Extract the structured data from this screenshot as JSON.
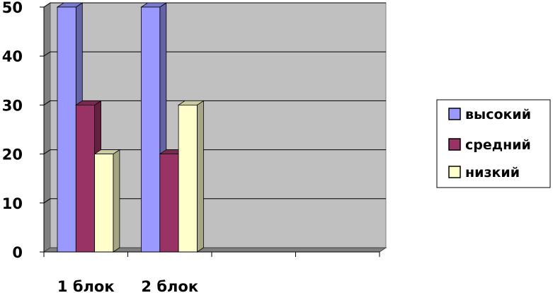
{
  "chart_data": {
    "type": "bar",
    "style": "3d-clustered-column",
    "categories": [
      "1 блок",
      "2 блок"
    ],
    "series": [
      {
        "name": "высокий",
        "values": [
          50,
          50
        ],
        "color": "#9999FF"
      },
      {
        "name": "средний",
        "values": [
          30,
          20
        ],
        "color": "#993366"
      },
      {
        "name": "низкий",
        "values": [
          20,
          30
        ],
        "color": "#FFFFCC"
      }
    ],
    "ylim": [
      0,
      50
    ],
    "yticks": [
      "0",
      "10",
      "20",
      "30",
      "40",
      "50"
    ],
    "grid": true,
    "legend": "right",
    "title": "",
    "xlabel": "",
    "ylabel": "",
    "wall_color": "#C0C0C0"
  }
}
